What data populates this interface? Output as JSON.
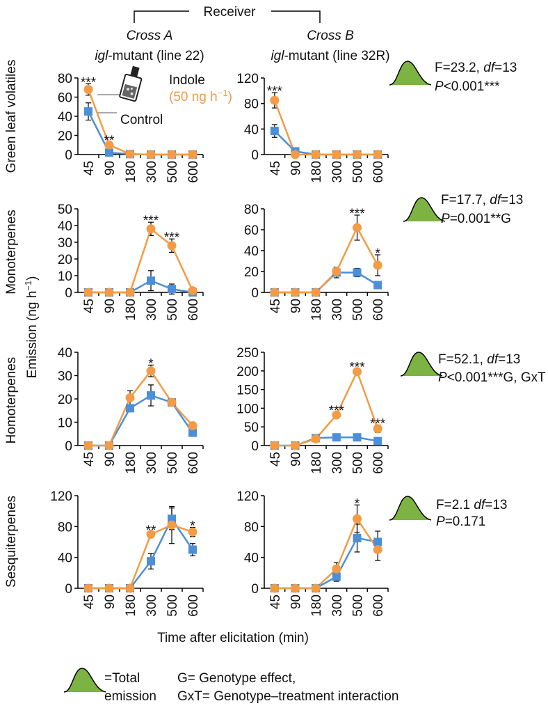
{
  "header": {
    "receiver": "Receiver",
    "cross_a": "Cross A",
    "line_a": [
      "igl",
      "-mutant (line 22)"
    ],
    "cross_b": "Cross B",
    "line_b": [
      "igl",
      "-mutant (line 32R)"
    ]
  },
  "row_labels": [
    "Green leaf volatiles",
    "Monoterpenes",
    "Homoterpenes",
    "Sesquiterpenes"
  ],
  "y_label": [
    "Emission (ng h",
    "−1",
    ")"
  ],
  "x_label": "Time after elicitation (min)",
  "stats": [
    {
      "f": "F=23.2, ",
      "df": "df",
      "df_value": "=13",
      "p": "P",
      "p_value": "<0.001***"
    },
    {
      "f": "F=17.7, ",
      "df": "df",
      "df_value": "=13",
      "p": "P",
      "p_value": "=0.001**G"
    },
    {
      "f": "F=52.1, ",
      "df": "df",
      "df_value": "=13",
      "p": "P",
      "p_value": "<0.001***G, GxT"
    },
    {
      "f": "F=2.1 ",
      "df": "df",
      "df_value": "=13",
      "p": "P",
      "p_value": "=0.171"
    }
  ],
  "footer": {
    "total": [
      "=Total",
      "emission"
    ],
    "g": "G= Genotype effect,",
    "gxt": "GxT= Genotype–treatment interaction"
  },
  "chart_data": [
    {
      "type": "line",
      "categories": [
        "45",
        "90",
        "180",
        "300",
        "500",
        "600"
      ],
      "ylim": [
        0,
        80
      ],
      "yticks": [
        0,
        20,
        40,
        60,
        80
      ],
      "legend_note": [
        "(50 ng h",
        "−1",
        ")"
      ],
      "series": [
        {
          "name": "Indole",
          "color": "#f39b45",
          "values": [
            68,
            10,
            0.5,
            0,
            0,
            0
          ],
          "errors": [
            6,
            3,
            0.5,
            0,
            0,
            0
          ]
        },
        {
          "name": "Control",
          "color": "#4c8fd8",
          "values": [
            45,
            2,
            0.5,
            0,
            0,
            0
          ],
          "errors": [
            9,
            2,
            0.5,
            0,
            0,
            0
          ]
        }
      ],
      "annotations": [
        {
          "text": "***",
          "category": "45"
        },
        {
          "text": "**",
          "category": "90"
        }
      ]
    },
    {
      "type": "line",
      "categories": [
        "45",
        "90",
        "180",
        "300",
        "500",
        "600"
      ],
      "ylim": [
        0,
        120
      ],
      "yticks": [
        0,
        40,
        80,
        120
      ],
      "series": [
        {
          "color": "#f39b45",
          "values": [
            85,
            0,
            0,
            0,
            0,
            0
          ],
          "errors": [
            12,
            0,
            0,
            0,
            0,
            0
          ]
        },
        {
          "color": "#4c8fd8",
          "values": [
            37,
            5,
            0,
            0,
            0,
            0
          ],
          "errors": [
            10,
            4,
            0,
            0,
            0,
            0
          ]
        }
      ],
      "annotations": [
        {
          "text": "***",
          "category": "45"
        }
      ]
    },
    {
      "type": "line",
      "categories": [
        "45",
        "90",
        "180",
        "300",
        "500",
        "600"
      ],
      "ylim": [
        0,
        50
      ],
      "yticks": [
        0,
        10,
        20,
        30,
        40,
        50
      ],
      "series": [
        {
          "color": "#f39b45",
          "values": [
            0,
            0,
            0,
            38,
            28,
            1
          ],
          "errors": [
            0,
            0,
            0,
            4,
            4,
            1
          ]
        },
        {
          "color": "#4c8fd8",
          "values": [
            0,
            0,
            0,
            7,
            2,
            0
          ],
          "errors": [
            0,
            0,
            0,
            6,
            3,
            0
          ]
        }
      ],
      "annotations": [
        {
          "text": "***",
          "category": "300"
        },
        {
          "text": "***",
          "category": "500"
        }
      ]
    },
    {
      "type": "line",
      "categories": [
        "45",
        "90",
        "180",
        "300",
        "500",
        "600"
      ],
      "ylim": [
        0,
        80
      ],
      "yticks": [
        0,
        20,
        40,
        60,
        80
      ],
      "series": [
        {
          "color": "#f39b45",
          "values": [
            0,
            0,
            0,
            20,
            62,
            26
          ],
          "errors": [
            0,
            0,
            0,
            4,
            12,
            10
          ]
        },
        {
          "color": "#4c8fd8",
          "values": [
            0,
            0,
            0,
            19,
            19,
            7
          ],
          "errors": [
            0,
            0,
            0,
            5,
            4,
            1
          ]
        }
      ],
      "annotations": [
        {
          "text": "***",
          "category": "500"
        },
        {
          "text": "*",
          "category": "600"
        }
      ]
    },
    {
      "type": "line",
      "categories": [
        "45",
        "90",
        "180",
        "300",
        "500",
        "600"
      ],
      "ylim": [
        0,
        40
      ],
      "yticks": [
        0,
        10,
        20,
        30,
        40
      ],
      "series": [
        {
          "color": "#f39b45",
          "values": [
            0,
            0,
            20.5,
            32,
            18.5,
            8.5
          ],
          "errors": [
            0,
            0,
            3,
            2.5,
            1,
            1.5
          ]
        },
        {
          "color": "#4c8fd8",
          "values": [
            0,
            0,
            16,
            21.5,
            18.5,
            5.5
          ],
          "errors": [
            0,
            0,
            1.5,
            4.5,
            1,
            1.5
          ]
        }
      ],
      "annotations": [
        {
          "text": "*",
          "category": "300"
        }
      ]
    },
    {
      "type": "line",
      "categories": [
        "45",
        "90",
        "180",
        "300",
        "500",
        "600"
      ],
      "ylim": [
        0,
        250
      ],
      "yticks": [
        0,
        50,
        100,
        150,
        200,
        250
      ],
      "series": [
        {
          "color": "#f39b45",
          "values": [
            0,
            0,
            18,
            82,
            198,
            45
          ],
          "errors": [
            0,
            0,
            5,
            8,
            8,
            10
          ]
        },
        {
          "color": "#4c8fd8",
          "values": [
            0,
            0,
            20,
            22,
            22,
            12
          ],
          "errors": [
            0,
            0,
            5,
            3,
            3,
            3
          ]
        }
      ],
      "annotations": [
        {
          "text": "***",
          "category": "300"
        },
        {
          "text": "***",
          "category": "500"
        },
        {
          "text": "***",
          "category": "600"
        }
      ]
    },
    {
      "type": "line",
      "categories": [
        "45",
        "90",
        "180",
        "300",
        "500",
        "600"
      ],
      "ylim": [
        0,
        120
      ],
      "yticks": [
        0,
        40,
        80,
        120
      ],
      "series": [
        {
          "color": "#f39b45",
          "values": [
            0,
            0,
            0,
            70,
            82,
            73
          ],
          "errors": [
            0,
            0,
            0,
            3,
            24,
            6
          ]
        },
        {
          "color": "#4c8fd8",
          "values": [
            0,
            0,
            0,
            35,
            90,
            50
          ],
          "errors": [
            0,
            0,
            0,
            10,
            14,
            8
          ]
        }
      ],
      "annotations": [
        {
          "text": "**",
          "category": "300"
        },
        {
          "text": "*",
          "category": "600"
        }
      ]
    },
    {
      "type": "line",
      "categories": [
        "45",
        "90",
        "180",
        "300",
        "500",
        "600"
      ],
      "ylim": [
        0,
        120
      ],
      "yticks": [
        0,
        40,
        80,
        120
      ],
      "series": [
        {
          "color": "#f39b45",
          "values": [
            0,
            0,
            0,
            25,
            90,
            50
          ],
          "errors": [
            0,
            0,
            0,
            8,
            18,
            14
          ]
        },
        {
          "color": "#4c8fd8",
          "values": [
            0,
            0,
            0,
            15,
            65,
            60
          ],
          "errors": [
            0,
            0,
            0,
            6,
            18,
            14
          ]
        }
      ],
      "annotations": [
        {
          "text": "*",
          "category": "500"
        }
      ]
    }
  ]
}
